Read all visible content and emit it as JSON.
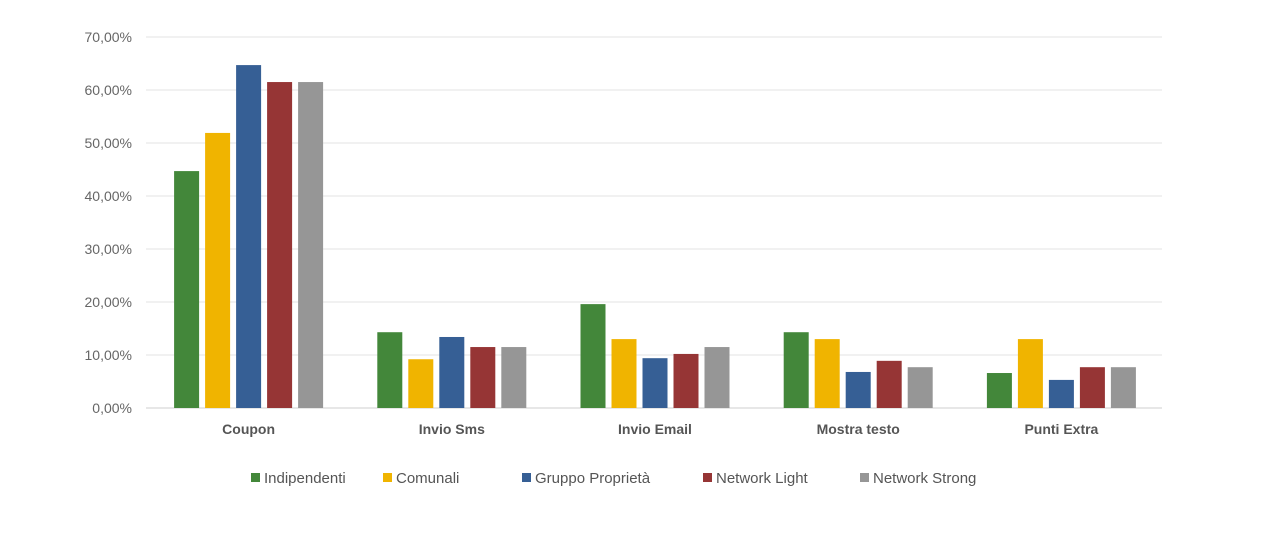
{
  "chart_data": {
    "type": "bar",
    "title": "",
    "xlabel": "",
    "ylabel": "",
    "ylim": [
      0,
      70
    ],
    "yticks": [
      "0,00%",
      "10,00%",
      "20,00%",
      "30,00%",
      "40,00%",
      "50,00%",
      "60,00%",
      "70,00%"
    ],
    "grid": true,
    "legend_position": "bottom",
    "categories": [
      "Coupon",
      "Invio Sms",
      "Invio Email",
      "Mostra testo",
      "Punti Extra"
    ],
    "series": [
      {
        "name": "Indipendenti",
        "color": "#43873a",
        "values": [
          44.7,
          14.3,
          19.6,
          14.3,
          6.6
        ]
      },
      {
        "name": "Comunali",
        "color": "#f0b400",
        "values": [
          51.9,
          9.2,
          13.0,
          13.0,
          13.0
        ]
      },
      {
        "name": "Gruppo Proprietà",
        "color": "#365f95",
        "values": [
          64.7,
          13.4,
          9.4,
          6.8,
          5.3
        ]
      },
      {
        "name": "Network Light",
        "color": "#963535",
        "values": [
          61.5,
          11.5,
          10.2,
          8.9,
          7.7
        ]
      },
      {
        "name": "Network Strong",
        "color": "#969696",
        "values": [
          61.5,
          11.5,
          11.5,
          7.7,
          7.7
        ]
      }
    ]
  }
}
